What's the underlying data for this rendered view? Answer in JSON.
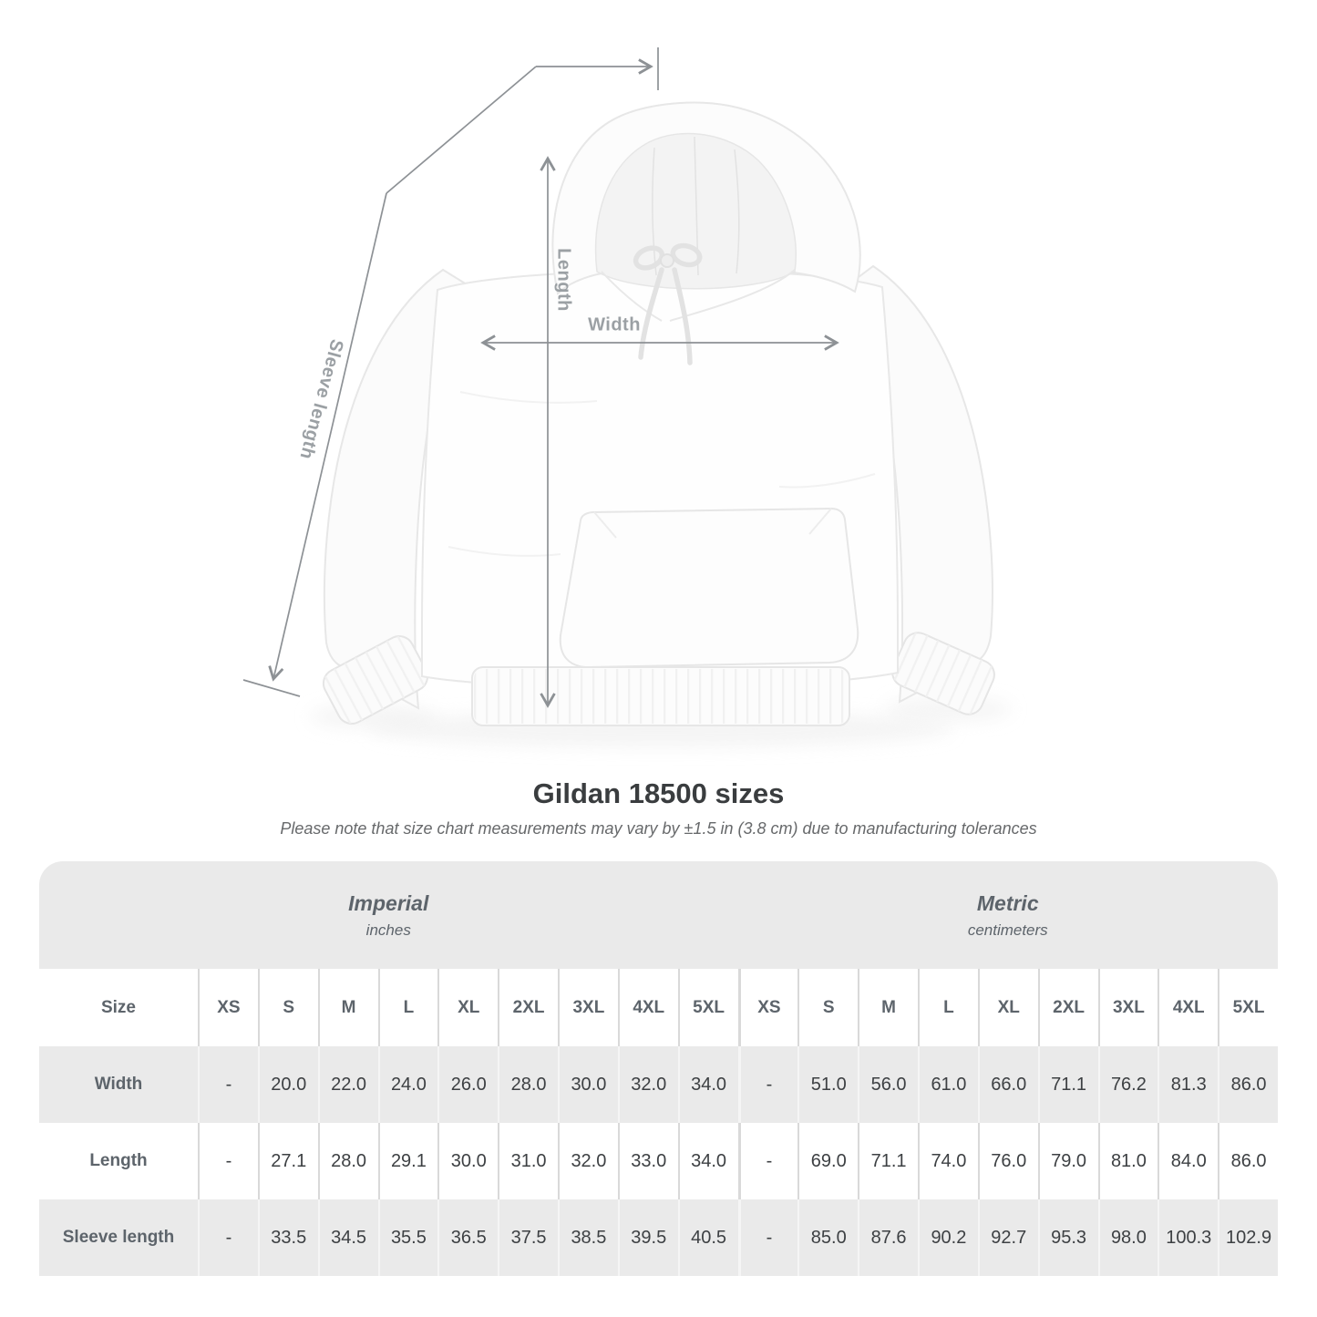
{
  "figure": {
    "width_label": "Width",
    "length_label": "Length",
    "sleeve_label": "Sleeve length"
  },
  "title": "Gildan 18500 sizes",
  "subtitle": "Please note that size chart measurements may vary by ±1.5 in (3.8 cm) due to manufacturing tolerances",
  "colors": {
    "table_band_gray": "#eaeaea",
    "arrow_gray": "#8d9195",
    "dim_label_gray": "#9ba0a4",
    "heading_dark": "#3a3d3f"
  },
  "table": {
    "corner_label": "Size",
    "sections": [
      {
        "label": "Imperial",
        "sublabel": "inches"
      },
      {
        "label": "Metric",
        "sublabel": "centimeters"
      }
    ],
    "size_headers": [
      "XS",
      "S",
      "M",
      "L",
      "XL",
      "2XL",
      "3XL",
      "4XL",
      "5XL"
    ],
    "rows": [
      {
        "label": "Width",
        "imperial": [
          "-",
          "20.0",
          "22.0",
          "24.0",
          "26.0",
          "28.0",
          "30.0",
          "32.0",
          "34.0"
        ],
        "metric": [
          "-",
          "51.0",
          "56.0",
          "61.0",
          "66.0",
          "71.1",
          "76.2",
          "81.3",
          "86.0"
        ]
      },
      {
        "label": "Length",
        "imperial": [
          "-",
          "27.1",
          "28.0",
          "29.1",
          "30.0",
          "31.0",
          "32.0",
          "33.0",
          "34.0"
        ],
        "metric": [
          "-",
          "69.0",
          "71.1",
          "74.0",
          "76.0",
          "79.0",
          "81.0",
          "84.0",
          "86.0"
        ]
      },
      {
        "label": "Sleeve length",
        "imperial": [
          "-",
          "33.5",
          "34.5",
          "35.5",
          "36.5",
          "37.5",
          "38.5",
          "39.5",
          "40.5"
        ],
        "metric": [
          "-",
          "85.0",
          "87.6",
          "90.2",
          "92.7",
          "95.3",
          "98.0",
          "100.3",
          "102.9"
        ]
      }
    ]
  }
}
